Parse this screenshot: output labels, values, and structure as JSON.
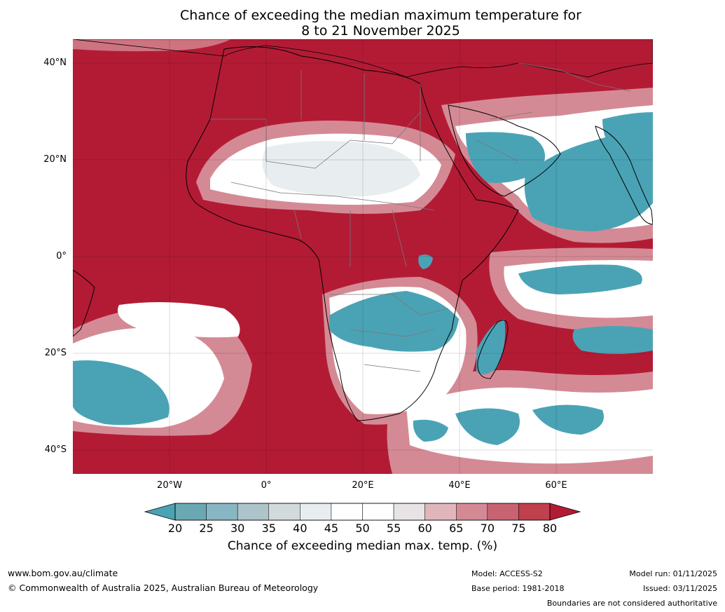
{
  "title": {
    "line1": "Chance of exceeding the median maximum temperature for",
    "line2": "8 to 21 November 2025"
  },
  "map": {
    "lat_labels": [
      "40°N",
      "20°N",
      "0°",
      "20°S",
      "40°S"
    ],
    "lon_labels": [
      "20°W",
      "0°",
      "20°E",
      "40°E",
      "60°E"
    ],
    "colors": {
      "hot": "#b31b35",
      "warm": "#d48a94",
      "neutral": "#ffffff",
      "light_cool": "#e8eef0",
      "cool": "#4aa3b5"
    },
    "grid_on": true
  },
  "colorbar": {
    "ticks": [
      "20",
      "25",
      "30",
      "35",
      "40",
      "45",
      "50",
      "55",
      "60",
      "65",
      "70",
      "75",
      "80"
    ],
    "colors": [
      "#4aa3b5",
      "#6aa8b4",
      "#88b7c3",
      "#acc4ca",
      "#d2dadc",
      "#e8eef0",
      "#ffffff",
      "#ffffff",
      "#e8e4e6",
      "#e0b6bc",
      "#d48a94",
      "#c86471",
      "#c0404e",
      "#b31b35"
    ],
    "label": "Chance of exceeding median max. temp. (%)"
  },
  "footer": {
    "url": "www.bom.gov.au/climate",
    "copyright": "© Commonwealth of Australia 2025, Australian Bureau of Meteorology",
    "model": "Model: ACCESS-S2",
    "base_period": "Base period: 1981-2018",
    "model_run": "Model run: 01/11/2025",
    "issued": "Issued: 03/11/2025",
    "disclaimer": "Boundaries are not considered authoritative"
  }
}
